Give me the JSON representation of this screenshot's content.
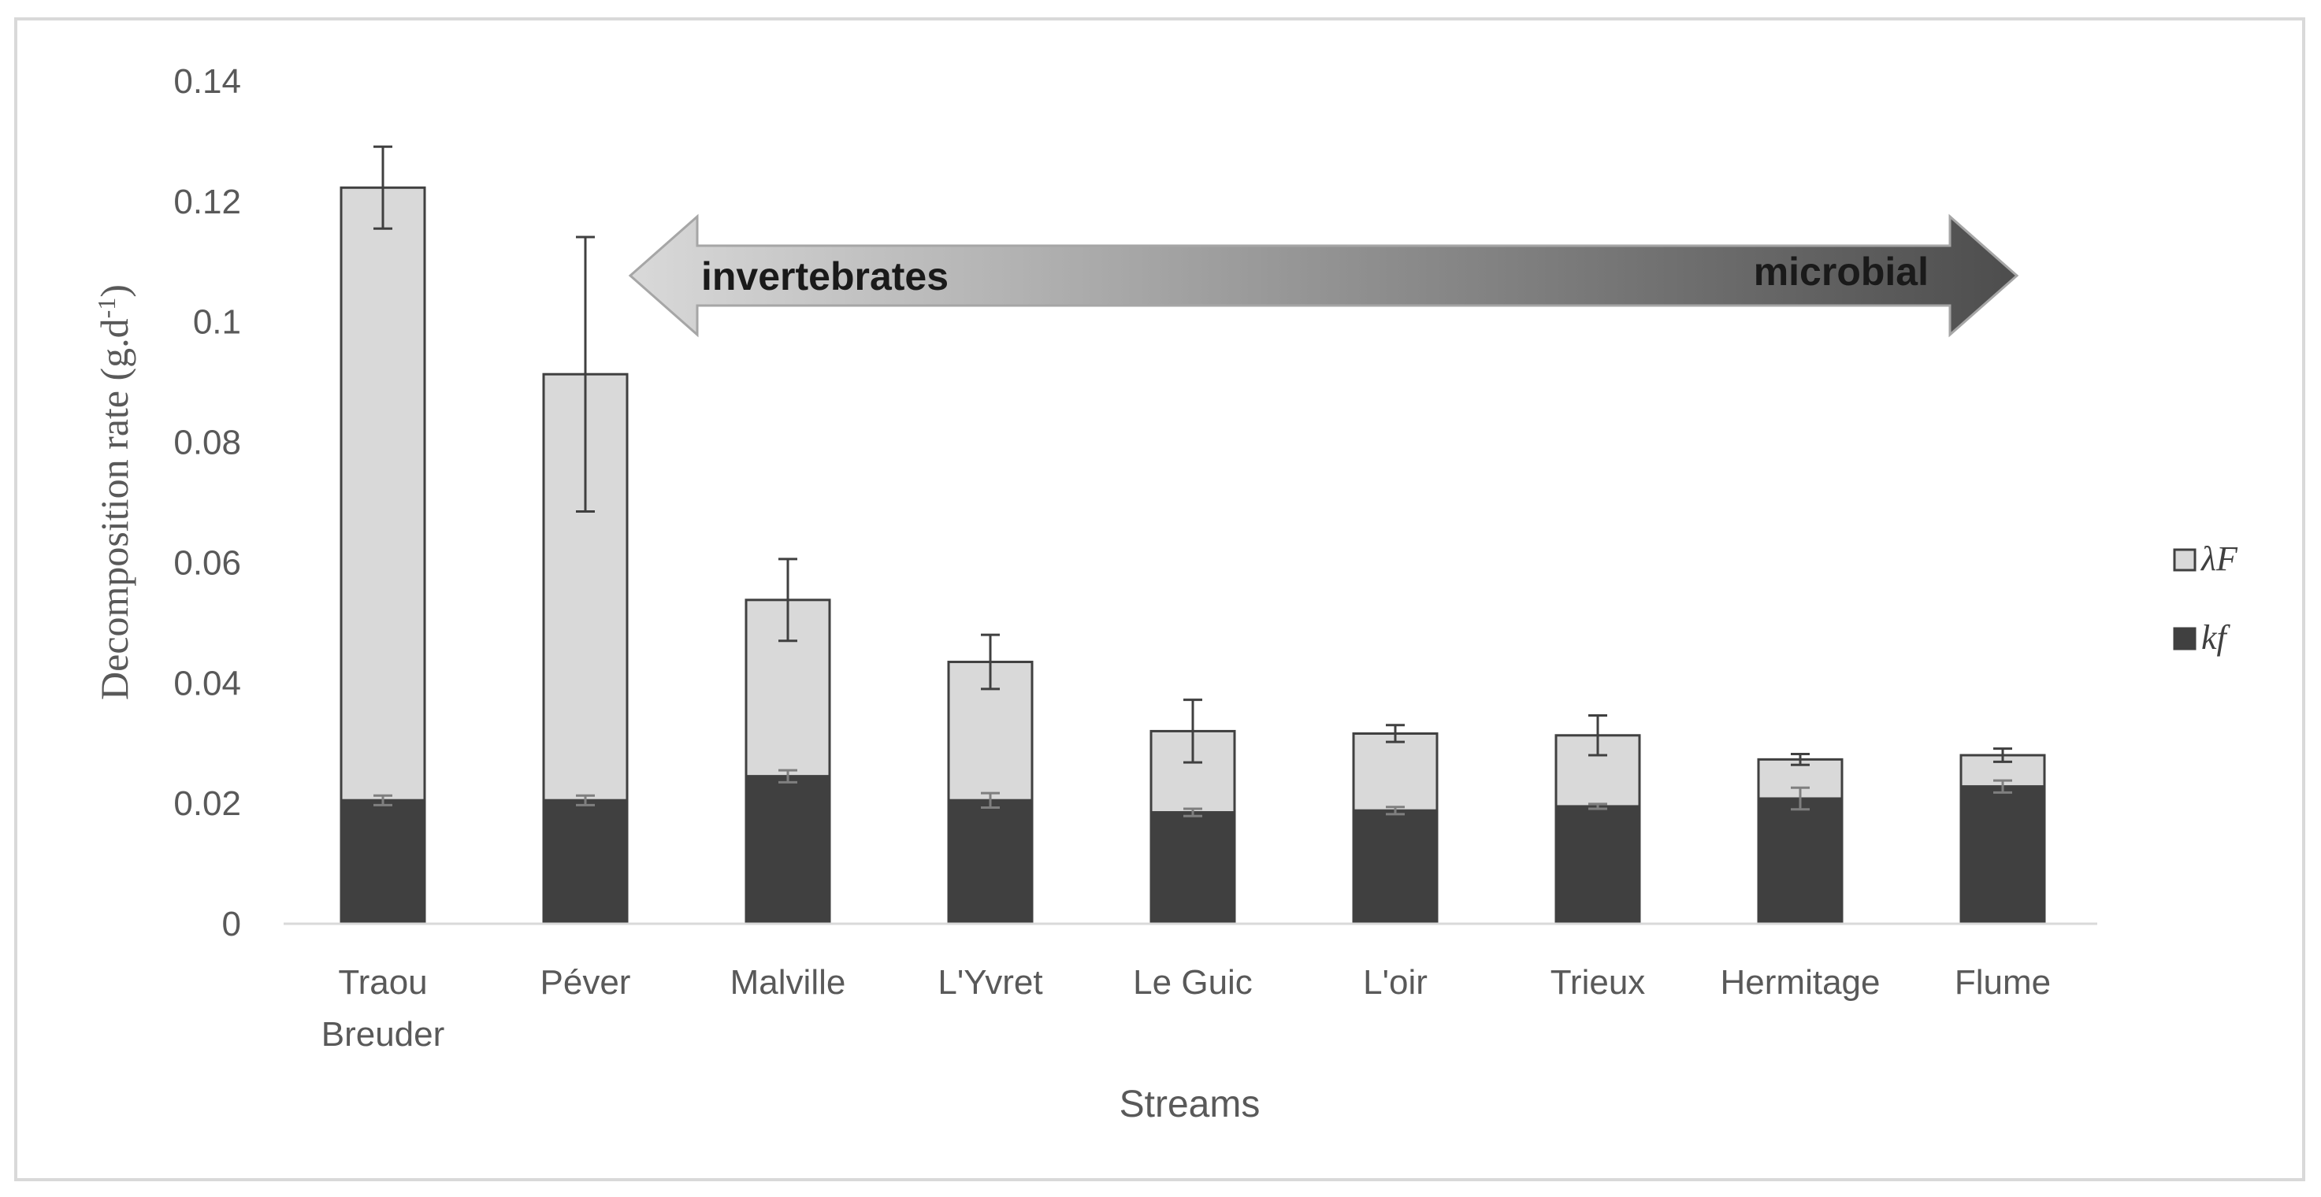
{
  "chart_data": {
    "type": "bar",
    "stacked": true,
    "title": "",
    "xlabel": "Streams",
    "ylabel": "Decomposition rate (g.d",
    "ylabel_superscript": "-1",
    "ylabel_suffix": ")",
    "ylim": [
      0,
      0.14
    ],
    "yticks": [
      "0",
      "0.02",
      "0.04",
      "0.06",
      "0.08",
      "0.1",
      "0.12",
      "0.14"
    ],
    "categories": [
      [
        "Traou",
        "Breuder"
      ],
      [
        "Péver"
      ],
      [
        "Malville"
      ],
      [
        "L'Yvret"
      ],
      [
        "Le Guic"
      ],
      [
        "L'oir"
      ],
      [
        "Trieux"
      ],
      [
        "Hermitage"
      ],
      [
        "Flume"
      ]
    ],
    "series": [
      {
        "name": "kf",
        "color": "#404040",
        "values": [
          0.0205,
          0.0205,
          0.0245,
          0.0205,
          0.0185,
          0.0188,
          0.0195,
          0.0208,
          0.0228
        ],
        "error": [
          0.0008,
          0.0008,
          0.001,
          0.0012,
          0.0006,
          0.0006,
          0.0004,
          0.0018,
          0.001
        ]
      },
      {
        "name": "λF",
        "color": "#d9d9d9",
        "values": [
          0.1018,
          0.0708,
          0.0293,
          0.023,
          0.0135,
          0.0128,
          0.0118,
          0.0065,
          0.0052
        ],
        "totals": [
          0.1223,
          0.0913,
          0.0538,
          0.0435,
          0.032,
          0.0316,
          0.0313,
          0.0273,
          0.028
        ],
        "error": [
          0.0068,
          0.0228,
          0.0068,
          0.0045,
          0.0052,
          0.0014,
          0.0033,
          0.0009,
          0.0011
        ]
      }
    ],
    "legend": {
      "placement": "right",
      "entries": [
        "λF",
        "kf"
      ]
    },
    "annotation_arrow": {
      "left_label": "invertebrates",
      "right_label": "microbial",
      "gradient_from": "#d9d9d9",
      "gradient_to": "#4d4d4d"
    },
    "grid": false
  }
}
